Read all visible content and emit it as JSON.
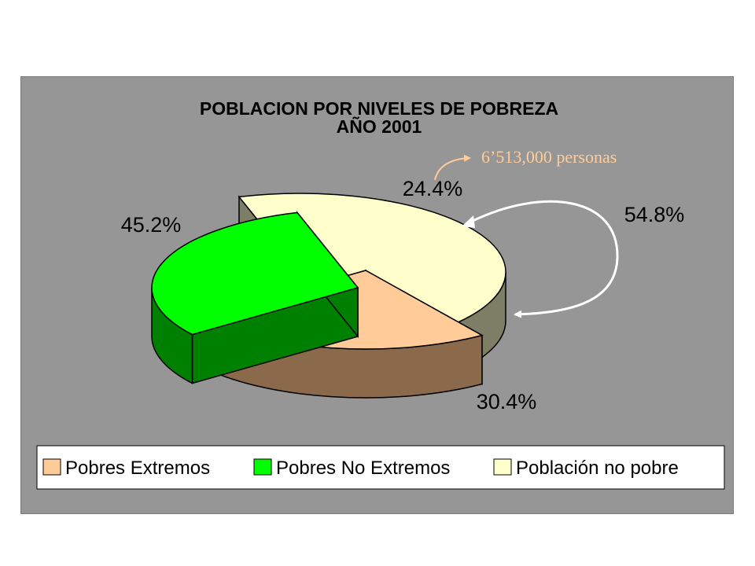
{
  "chart_data": {
    "type": "pie",
    "title": "POBLACION POR NIVELES DE POBREZA",
    "subtitle": "AÑO 2001",
    "categories": [
      "Pobres Extremos",
      "Pobres No Extremos",
      "Población no pobre"
    ],
    "values": [
      24.4,
      30.4,
      45.2
    ],
    "value_labels": [
      "24.4%",
      "30.4%",
      "45.2%"
    ],
    "colors": [
      "#ffcc99",
      "#00ff00",
      "#ffffcc"
    ],
    "side_colors": [
      "#8b6a4c",
      "#008000",
      "#7e7e67"
    ],
    "legend_position": "bottom",
    "annotations": {
      "combined_label": "54.8%",
      "persons_note": "6’513,000 personas",
      "persons_note_color": "#ffcc99"
    }
  }
}
